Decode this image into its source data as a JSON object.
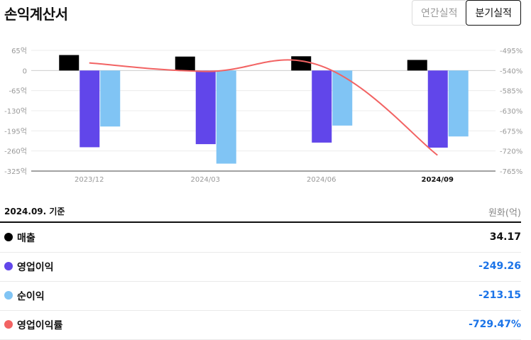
{
  "header": {
    "title": "손익계산서",
    "tabs": [
      {
        "label": "연간실적",
        "active": false
      },
      {
        "label": "분기실적",
        "active": true
      }
    ]
  },
  "chart_data": {
    "type": "bar",
    "categories": [
      "2023/12",
      "2024/03",
      "2024/06",
      "2024/09"
    ],
    "highlight_category": "2024/09",
    "left_axis": {
      "ticks": [
        65,
        0,
        -65,
        -130,
        -195,
        -260,
        -325
      ],
      "tick_labels": [
        "65억",
        "0",
        "-65억",
        "-130억",
        "-195억",
        "-260억",
        "-325억"
      ],
      "range": [
        -325,
        65
      ]
    },
    "right_axis": {
      "ticks": [
        -495,
        -540,
        -585,
        -630,
        -675,
        -720,
        -765
      ],
      "tick_labels": [
        "-495%",
        "-540%",
        "-585%",
        "-630%",
        "-675%",
        "-720%",
        "-765%"
      ],
      "range": [
        -765,
        -495
      ]
    },
    "series": [
      {
        "name": "매출",
        "kind": "bar",
        "color": "#000000",
        "values": [
          50,
          45,
          46,
          34.17
        ]
      },
      {
        "name": "영업이익",
        "kind": "bar",
        "color": "#6146ea",
        "values": [
          -248,
          -238,
          -233,
          -249.26
        ]
      },
      {
        "name": "순이익",
        "kind": "bar",
        "color": "#80c4f4",
        "values": [
          -181,
          -301,
          -178,
          -213.15
        ]
      },
      {
        "name": "영업이익률",
        "kind": "line",
        "color": "#f26363",
        "axis": "right",
        "values": [
          -523,
          -542,
          -530,
          -729.47
        ]
      }
    ],
    "grid": true,
    "legend": "none"
  },
  "summary": {
    "basis": "2024.09. 기준",
    "unit": "원화(억)",
    "rows": [
      {
        "label": "매출",
        "value": "34.17",
        "color": "#000000",
        "value_color": "#111111"
      },
      {
        "label": "영업이익",
        "value": "-249.26",
        "color": "#6146ea",
        "value_color": "#1a73e8"
      },
      {
        "label": "순이익",
        "value": "-213.15",
        "color": "#80c4f4",
        "value_color": "#1a73e8"
      },
      {
        "label": "영업이익률",
        "value": "-729.47%",
        "color": "#f26363",
        "value_color": "#1a73e8"
      }
    ]
  }
}
